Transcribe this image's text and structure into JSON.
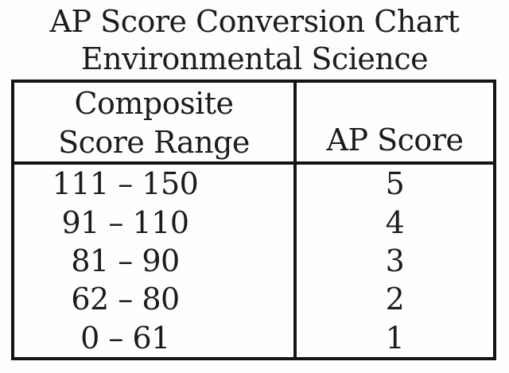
{
  "title": {
    "line1": "AP Score Conversion Chart",
    "line2": "Environmental Science"
  },
  "table": {
    "header": {
      "col1_line1": "Composite",
      "col1_line2": "Score Range",
      "col2": "AP Score"
    },
    "rows": [
      {
        "range": "111 – 150",
        "score": "5"
      },
      {
        "range": "91 – 110",
        "score": "4"
      },
      {
        "range": "81 – 90",
        "score": "3"
      },
      {
        "range": "62 – 80",
        "score": "2"
      },
      {
        "range": "0 – 61",
        "score": "1"
      }
    ]
  },
  "chart_data": {
    "type": "table",
    "title": "AP Score Conversion Chart — Environmental Science",
    "columns": [
      "Composite Score Range",
      "AP Score"
    ],
    "rows": [
      [
        "111 – 150",
        5
      ],
      [
        "91 – 110",
        4
      ],
      [
        "81 – 90",
        3
      ],
      [
        "62 – 80",
        2
      ],
      [
        "0 – 61",
        1
      ]
    ],
    "layout_hints": {
      "grid": "full black borders, single vertical divider, header separator",
      "legend": "none",
      "axes": "none"
    }
  },
  "colors": {
    "background": "#fdfdfd",
    "text": "#1c1c1c",
    "border": "#141414"
  }
}
